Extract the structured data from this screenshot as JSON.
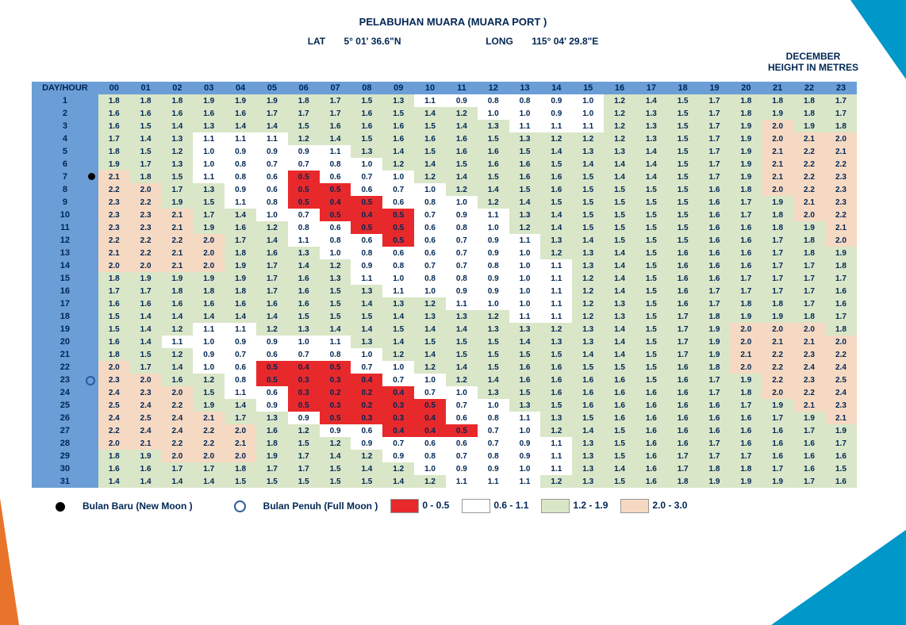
{
  "title": "PELABUHAN MUARA (MUARA PORT )",
  "lat_label": "LAT",
  "lat_val": "5°   01' 36.6\"N",
  "long_label": "LONG",
  "long_val": "115°   04' 29.8\"E",
  "month": "DECEMBER",
  "units": "HEIGHT IN METRES",
  "corner_label": "DAY/HOUR",
  "hours": [
    "00",
    "01",
    "02",
    "03",
    "04",
    "05",
    "06",
    "07",
    "08",
    "09",
    "10",
    "11",
    "12",
    "13",
    "14",
    "15",
    "16",
    "17",
    "18",
    "19",
    "20",
    "21",
    "22",
    "23"
  ],
  "colors": {
    "red": "#e8292b",
    "white": "#ffffff",
    "green": "#d9e6c8",
    "tan": "#f6d9c3",
    "hdr": "#6b9ed6"
  },
  "thresholds": {
    "red_max": 0.5,
    "white_max": 1.1,
    "green_max": 1.9
  },
  "moon": {
    "new_day": 7,
    "full_day": 23
  },
  "legend": {
    "new": "Bulan Baru (New Moon )",
    "full": "Bulan Penuh (Full Moon )",
    "r": "0 - 0.5",
    "w": "0.6 - 1.1",
    "g": "1.2 - 1.9",
    "t": "2.0 - 3.0"
  },
  "rows": [
    [
      1.8,
      1.8,
      1.8,
      1.9,
      1.9,
      1.9,
      1.8,
      1.7,
      1.5,
      1.3,
      1.1,
      0.9,
      0.8,
      0.8,
      0.9,
      1.0,
      1.2,
      1.4,
      1.5,
      1.7,
      1.8,
      1.8,
      1.8,
      1.7
    ],
    [
      1.6,
      1.6,
      1.6,
      1.6,
      1.6,
      1.7,
      1.7,
      1.7,
      1.6,
      1.5,
      1.4,
      1.2,
      1.0,
      1.0,
      0.9,
      1.0,
      1.2,
      1.3,
      1.5,
      1.7,
      1.8,
      1.9,
      1.8,
      1.7
    ],
    [
      1.6,
      1.5,
      1.4,
      1.3,
      1.4,
      1.4,
      1.5,
      1.6,
      1.6,
      1.6,
      1.5,
      1.4,
      1.3,
      1.1,
      1.1,
      1.1,
      1.2,
      1.3,
      1.5,
      1.7,
      1.9,
      2.0,
      1.9,
      1.8
    ],
    [
      1.7,
      1.4,
      1.3,
      1.1,
      1.1,
      1.1,
      1.2,
      1.4,
      1.5,
      1.6,
      1.6,
      1.6,
      1.5,
      1.3,
      1.2,
      1.2,
      1.2,
      1.3,
      1.5,
      1.7,
      1.9,
      2.0,
      2.1,
      2.0
    ],
    [
      1.8,
      1.5,
      1.2,
      1.0,
      0.9,
      0.9,
      0.9,
      1.1,
      1.3,
      1.4,
      1.5,
      1.6,
      1.6,
      1.5,
      1.4,
      1.3,
      1.3,
      1.4,
      1.5,
      1.7,
      1.9,
      2.1,
      2.2,
      2.1
    ],
    [
      1.9,
      1.7,
      1.3,
      1.0,
      0.8,
      0.7,
      0.7,
      0.8,
      1.0,
      1.2,
      1.4,
      1.5,
      1.6,
      1.6,
      1.5,
      1.4,
      1.4,
      1.4,
      1.5,
      1.7,
      1.9,
      2.1,
      2.2,
      2.2
    ],
    [
      2.1,
      1.8,
      1.5,
      1.1,
      0.8,
      0.6,
      0.5,
      0.6,
      0.7,
      1.0,
      1.2,
      1.4,
      1.5,
      1.6,
      1.6,
      1.5,
      1.4,
      1.4,
      1.5,
      1.7,
      1.9,
      2.1,
      2.2,
      2.3
    ],
    [
      2.2,
      2.0,
      1.7,
      1.3,
      0.9,
      0.6,
      0.5,
      0.5,
      0.6,
      0.7,
      1.0,
      1.2,
      1.4,
      1.5,
      1.6,
      1.5,
      1.5,
      1.5,
      1.5,
      1.6,
      1.8,
      2.0,
      2.2,
      2.3
    ],
    [
      2.3,
      2.2,
      1.9,
      1.5,
      1.1,
      0.8,
      0.5,
      0.4,
      0.5,
      0.6,
      0.8,
      1.0,
      1.2,
      1.4,
      1.5,
      1.5,
      1.5,
      1.5,
      1.5,
      1.6,
      1.7,
      1.9,
      2.1,
      2.3
    ],
    [
      2.3,
      2.3,
      2.1,
      1.7,
      1.4,
      1.0,
      0.7,
      0.5,
      0.4,
      0.5,
      0.7,
      0.9,
      1.1,
      1.3,
      1.4,
      1.5,
      1.5,
      1.5,
      1.5,
      1.6,
      1.7,
      1.8,
      2.0,
      2.2
    ],
    [
      2.3,
      2.3,
      2.1,
      1.9,
      1.6,
      1.2,
      0.8,
      0.6,
      0.5,
      0.5,
      0.6,
      0.8,
      1.0,
      1.2,
      1.4,
      1.5,
      1.5,
      1.5,
      1.5,
      1.6,
      1.6,
      1.8,
      1.9,
      2.1
    ],
    [
      2.2,
      2.2,
      2.2,
      2.0,
      1.7,
      1.4,
      1.1,
      0.8,
      0.6,
      0.5,
      0.6,
      0.7,
      0.9,
      1.1,
      1.3,
      1.4,
      1.5,
      1.5,
      1.5,
      1.6,
      1.6,
      1.7,
      1.8,
      2.0
    ],
    [
      2.1,
      2.2,
      2.1,
      2.0,
      1.8,
      1.6,
      1.3,
      1.0,
      0.8,
      0.6,
      0.6,
      0.7,
      0.9,
      1.0,
      1.2,
      1.3,
      1.4,
      1.5,
      1.6,
      1.6,
      1.6,
      1.7,
      1.8,
      1.9
    ],
    [
      2.0,
      2.0,
      2.1,
      2.0,
      1.9,
      1.7,
      1.4,
      1.2,
      0.9,
      0.8,
      0.7,
      0.7,
      0.8,
      1.0,
      1.1,
      1.3,
      1.4,
      1.5,
      1.6,
      1.6,
      1.6,
      1.7,
      1.7,
      1.8
    ],
    [
      1.8,
      1.9,
      1.9,
      1.9,
      1.9,
      1.7,
      1.6,
      1.3,
      1.1,
      1.0,
      0.8,
      0.8,
      0.9,
      1.0,
      1.1,
      1.2,
      1.4,
      1.5,
      1.6,
      1.6,
      1.7,
      1.7,
      1.7,
      1.7
    ],
    [
      1.7,
      1.7,
      1.8,
      1.8,
      1.8,
      1.7,
      1.6,
      1.5,
      1.3,
      1.1,
      1.0,
      0.9,
      0.9,
      1.0,
      1.1,
      1.2,
      1.4,
      1.5,
      1.6,
      1.7,
      1.7,
      1.7,
      1.7,
      1.6
    ],
    [
      1.6,
      1.6,
      1.6,
      1.6,
      1.6,
      1.6,
      1.6,
      1.5,
      1.4,
      1.3,
      1.2,
      1.1,
      1.0,
      1.0,
      1.1,
      1.2,
      1.3,
      1.5,
      1.6,
      1.7,
      1.8,
      1.8,
      1.7,
      1.6
    ],
    [
      1.5,
      1.4,
      1.4,
      1.4,
      1.4,
      1.4,
      1.5,
      1.5,
      1.5,
      1.4,
      1.3,
      1.3,
      1.2,
      1.1,
      1.1,
      1.2,
      1.3,
      1.5,
      1.7,
      1.8,
      1.9,
      1.9,
      1.8,
      1.7
    ],
    [
      1.5,
      1.4,
      1.2,
      1.1,
      1.1,
      1.2,
      1.3,
      1.4,
      1.4,
      1.5,
      1.4,
      1.4,
      1.3,
      1.3,
      1.2,
      1.3,
      1.4,
      1.5,
      1.7,
      1.9,
      2.0,
      2.0,
      2.0,
      1.8
    ],
    [
      1.6,
      1.4,
      1.1,
      1.0,
      0.9,
      0.9,
      1.0,
      1.1,
      1.3,
      1.4,
      1.5,
      1.5,
      1.5,
      1.4,
      1.3,
      1.3,
      1.4,
      1.5,
      1.7,
      1.9,
      2.0,
      2.1,
      2.1,
      2.0
    ],
    [
      1.8,
      1.5,
      1.2,
      0.9,
      0.7,
      0.6,
      0.7,
      0.8,
      1.0,
      1.2,
      1.4,
      1.5,
      1.5,
      1.5,
      1.5,
      1.4,
      1.4,
      1.5,
      1.7,
      1.9,
      2.1,
      2.2,
      2.3,
      2.2
    ],
    [
      2.0,
      1.7,
      1.4,
      1.0,
      0.6,
      0.5,
      0.4,
      0.5,
      0.7,
      1.0,
      1.2,
      1.4,
      1.5,
      1.6,
      1.6,
      1.5,
      1.5,
      1.5,
      1.6,
      1.8,
      2.0,
      2.2,
      2.4,
      2.4
    ],
    [
      2.3,
      2.0,
      1.6,
      1.2,
      0.8,
      0.5,
      0.3,
      0.3,
      0.4,
      0.7,
      1.0,
      1.2,
      1.4,
      1.6,
      1.6,
      1.6,
      1.6,
      1.5,
      1.6,
      1.7,
      1.9,
      2.2,
      2.3,
      2.5
    ],
    [
      2.4,
      2.3,
      2.0,
      1.5,
      1.1,
      0.6,
      0.3,
      0.2,
      0.2,
      0.4,
      0.7,
      1.0,
      1.3,
      1.5,
      1.6,
      1.6,
      1.6,
      1.6,
      1.6,
      1.7,
      1.8,
      2.0,
      2.2,
      2.4
    ],
    [
      2.5,
      2.4,
      2.2,
      1.9,
      1.4,
      0.9,
      0.5,
      0.3,
      0.2,
      0.3,
      0.5,
      0.7,
      1.0,
      1.3,
      1.5,
      1.6,
      1.6,
      1.6,
      1.6,
      1.6,
      1.7,
      1.9,
      2.1,
      2.3
    ],
    [
      2.4,
      2.5,
      2.4,
      2.1,
      1.7,
      1.3,
      0.9,
      0.5,
      0.3,
      0.3,
      0.4,
      0.6,
      0.8,
      1.1,
      1.3,
      1.5,
      1.6,
      1.6,
      1.6,
      1.6,
      1.6,
      1.7,
      1.9,
      2.1
    ],
    [
      2.2,
      2.4,
      2.4,
      2.2,
      2.0,
      1.6,
      1.2,
      0.9,
      0.6,
      0.4,
      0.4,
      0.5,
      0.7,
      1.0,
      1.2,
      1.4,
      1.5,
      1.6,
      1.6,
      1.6,
      1.6,
      1.6,
      1.7,
      1.9
    ],
    [
      2.0,
      2.1,
      2.2,
      2.2,
      2.1,
      1.8,
      1.5,
      1.2,
      0.9,
      0.7,
      0.6,
      0.6,
      0.7,
      0.9,
      1.1,
      1.3,
      1.5,
      1.6,
      1.6,
      1.7,
      1.6,
      1.6,
      1.6,
      1.7
    ],
    [
      1.8,
      1.9,
      2.0,
      2.0,
      2.0,
      1.9,
      1.7,
      1.4,
      1.2,
      0.9,
      0.8,
      0.7,
      0.8,
      0.9,
      1.1,
      1.3,
      1.5,
      1.6,
      1.7,
      1.7,
      1.7,
      1.6,
      1.6,
      1.6
    ],
    [
      1.6,
      1.6,
      1.7,
      1.7,
      1.8,
      1.7,
      1.7,
      1.5,
      1.4,
      1.2,
      1.0,
      0.9,
      0.9,
      1.0,
      1.1,
      1.3,
      1.4,
      1.6,
      1.7,
      1.8,
      1.8,
      1.7,
      1.6,
      1.5
    ],
    [
      1.4,
      1.4,
      1.4,
      1.4,
      1.5,
      1.5,
      1.5,
      1.5,
      1.5,
      1.4,
      1.2,
      1.1,
      1.1,
      1.1,
      1.2,
      1.3,
      1.5,
      1.6,
      1.8,
      1.9,
      1.9,
      1.9,
      1.7,
      1.6
    ]
  ]
}
